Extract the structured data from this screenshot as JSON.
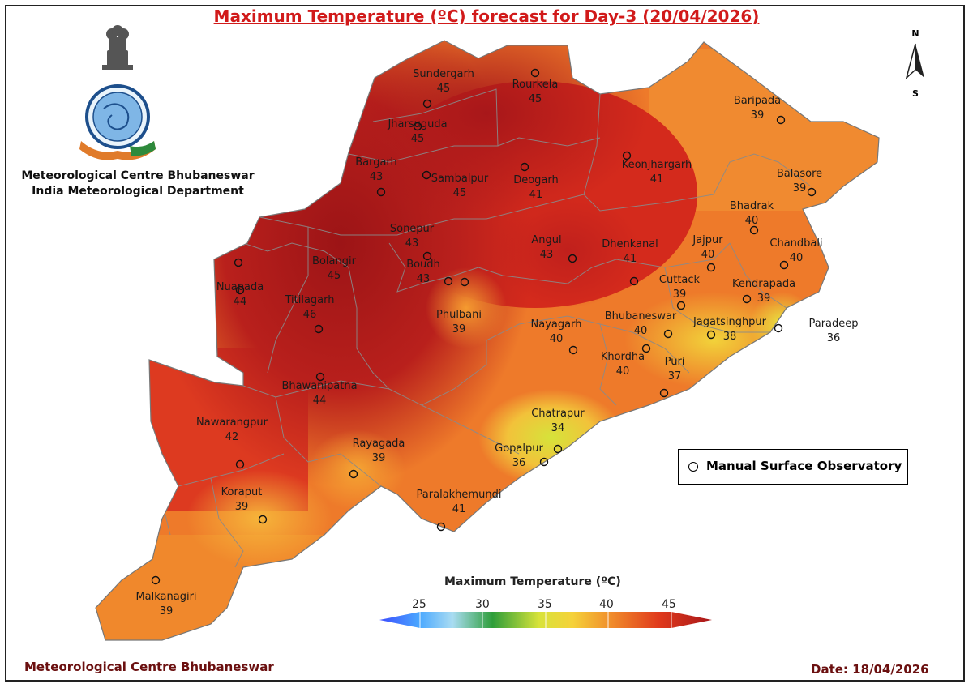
{
  "title": "Maximum Temperature (ºC) forecast for Day-3 (20/04/2026)",
  "organization": {
    "line1": "Meteorological Centre Bhubaneswar",
    "line2": "India Meteorological Department"
  },
  "footer": {
    "left": "Meteorological Centre Bhubaneswar",
    "right": "Date: 18/04/2026"
  },
  "compass": {
    "north": "N",
    "south": "S"
  },
  "legend": {
    "label": "Manual Surface Observatory"
  },
  "colorbar": {
    "title": "Maximum Temperature (ºC)",
    "ticks": [
      "25",
      "30",
      "35",
      "40",
      "45"
    ],
    "colors": [
      "#3b4cff",
      "#4aa8ff",
      "#a9dcf2",
      "#2e9e3a",
      "#d8e33a",
      "#f5d23a",
      "#f08a2a",
      "#e03a1c",
      "#a8171a"
    ]
  },
  "stations": [
    {
      "name": "Sundergarh",
      "value": "45"
    },
    {
      "name": "Rourkela",
      "value": "45"
    },
    {
      "name": "Jharsuguda",
      "value": "45"
    },
    {
      "name": "Baripada",
      "value": "39"
    },
    {
      "name": "Bargarh",
      "value": "43"
    },
    {
      "name": "Sambalpur",
      "value": "45"
    },
    {
      "name": "Deogarh",
      "value": "41"
    },
    {
      "name": "Keonjhargarh",
      "value": "41"
    },
    {
      "name": "Balasore",
      "value": "39"
    },
    {
      "name": "Bhadrak",
      "value": "40"
    },
    {
      "name": "Sonepur",
      "value": "43"
    },
    {
      "name": "Angul",
      "value": "43"
    },
    {
      "name": "Dhenkanal",
      "value": "41"
    },
    {
      "name": "Jajpur",
      "value": "40"
    },
    {
      "name": "Chandbali",
      "value": "40"
    },
    {
      "name": "Bolangir",
      "value": "45"
    },
    {
      "name": "Boudh",
      "value": "43"
    },
    {
      "name": "Nuapada",
      "value": "44"
    },
    {
      "name": "Cuttack",
      "value": "39"
    },
    {
      "name": "Kendrapada",
      "value": "39"
    },
    {
      "name": "Titilagarh",
      "value": "46"
    },
    {
      "name": "Phulbani",
      "value": "39"
    },
    {
      "name": "Nayagarh",
      "value": "40"
    },
    {
      "name": "Bhubaneswar",
      "value": "40"
    },
    {
      "name": "Jagatsinghpur",
      "value": "38"
    },
    {
      "name": "Paradeep",
      "value": "36"
    },
    {
      "name": "Khordha",
      "value": "40"
    },
    {
      "name": "Puri",
      "value": "37"
    },
    {
      "name": "Bhawanipatna",
      "value": "44"
    },
    {
      "name": "Chatrapur",
      "value": "34"
    },
    {
      "name": "Nawarangpur",
      "value": "42"
    },
    {
      "name": "Rayagada",
      "value": "39"
    },
    {
      "name": "Gopalpur",
      "value": "36"
    },
    {
      "name": "Koraput",
      "value": "39"
    },
    {
      "name": "Paralakhemundi",
      "value": "41"
    },
    {
      "name": "Malkanagiri",
      "value": "39"
    }
  ]
}
